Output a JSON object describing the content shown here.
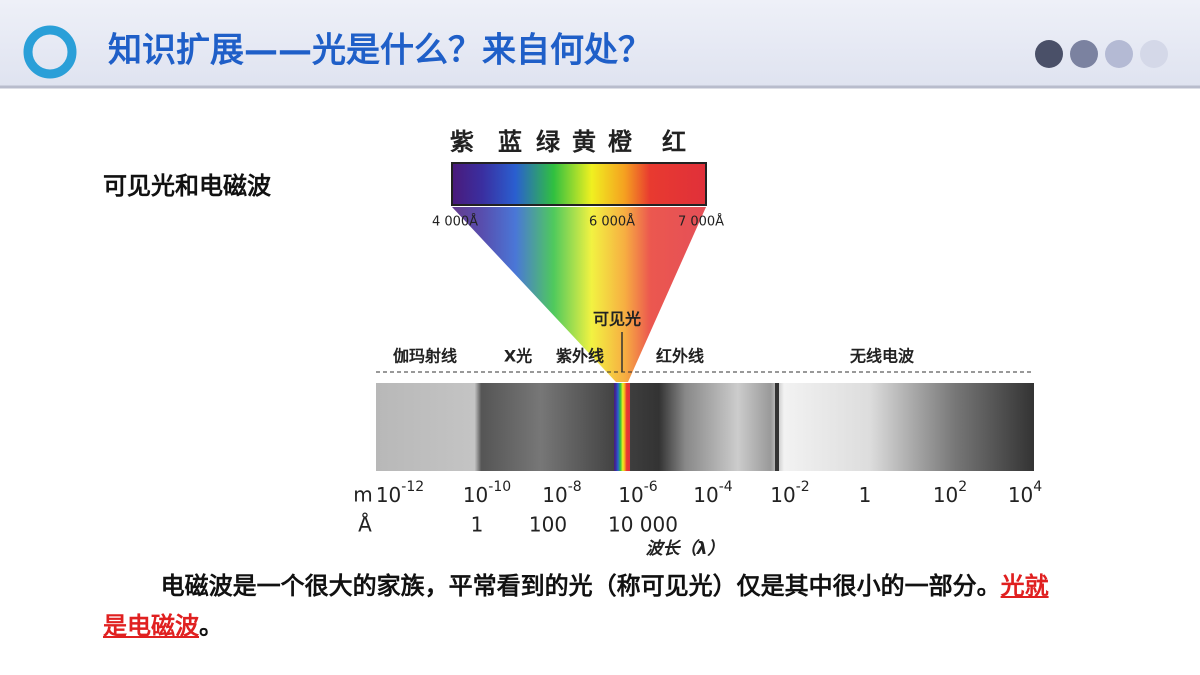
{
  "header": {
    "title": "知识扩展——光是什么？来自何处？"
  },
  "section_label": "可见光和电磁波",
  "spectrum": {
    "colors": [
      "紫",
      "蓝",
      "绿",
      "黄",
      "橙",
      "红"
    ],
    "wavelengths": [
      "4 000Å",
      "6 000Å",
      "7 000Å"
    ],
    "visible_label": "可见光",
    "bands": [
      "伽玛射线",
      "X光",
      "紫外线",
      "红外线",
      "无线电波"
    ],
    "m_unit": "m",
    "m_ticks": [
      {
        "base": "10",
        "exp": "-12"
      },
      {
        "base": "10",
        "exp": "-10"
      },
      {
        "base": "10",
        "exp": "-8"
      },
      {
        "base": "10",
        "exp": "-6"
      },
      {
        "base": "10",
        "exp": "-4"
      },
      {
        "base": "10",
        "exp": "-2"
      },
      {
        "base": "1"
      },
      {
        "base": "10",
        "exp": "2"
      },
      {
        "base": "10",
        "exp": "4"
      }
    ],
    "a_unit": "Å",
    "a_ticks": [
      "1",
      "100",
      "10 000"
    ],
    "axis_label": "波长（λ）"
  },
  "paragraph": {
    "text": "电磁波是一个很大的家族，平常看到的光（称可见光）仅是其中很小的一部分。",
    "highlight": "光就是电磁波",
    "end": "。"
  }
}
